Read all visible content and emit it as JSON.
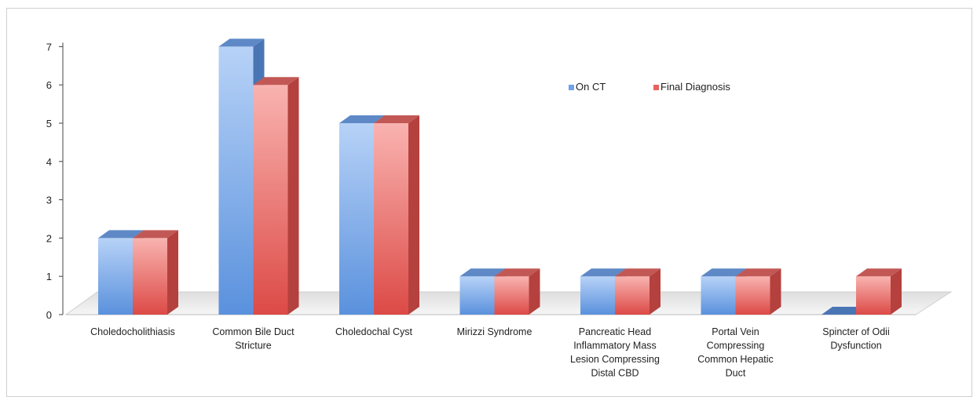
{
  "chart_data": {
    "type": "bar",
    "title": "",
    "xlabel": "",
    "ylabel": "",
    "ylim": [
      0,
      7
    ],
    "yticks": [
      0,
      1,
      2,
      3,
      4,
      5,
      6,
      7
    ],
    "grid": false,
    "legend_position": "top-right",
    "categories": [
      [
        "Choledocholithiasis"
      ],
      [
        "Common Bile Duct",
        "Stricture"
      ],
      [
        "Choledochal Cyst"
      ],
      [
        "Mirizzi Syndrome"
      ],
      [
        "Pancreatic Head",
        "Inflammatory Mass",
        "Lesion Compressing",
        "Distal CBD"
      ],
      [
        "Portal Vein",
        "Compressing",
        "Common Hepatic",
        "Duct"
      ],
      [
        "Spincter of Odii",
        "Dysfunction"
      ]
    ],
    "series": [
      {
        "name": "On CT",
        "color": "#6fa2e6",
        "values": [
          2,
          7,
          5,
          1,
          1,
          1,
          0
        ]
      },
      {
        "name": "Final Diagnosis",
        "color": "#e8625f",
        "values": [
          2,
          6,
          5,
          1,
          1,
          1,
          1
        ]
      }
    ]
  }
}
